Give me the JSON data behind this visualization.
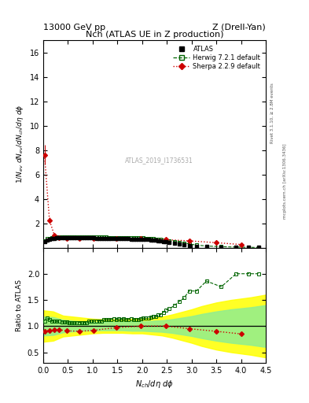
{
  "title_top": "13000 GeV pp",
  "title_top_right": "Z (Drell-Yan)",
  "plot_title": "Nch (ATLAS UE in Z production)",
  "xlabel": "$N_{ch}/d\\eta\\ d\\phi$",
  "ylabel_main": "$1/N_{ev}\\ dN_{ev}/dN_{ch}/d\\eta\\ d\\phi$",
  "ylabel_ratio": "Ratio to ATLAS",
  "watermark": "ATLAS_2019_I1736531",
  "xlim": [
    0,
    4.5
  ],
  "ylim_main": [
    0,
    17
  ],
  "ylim_ratio": [
    0.3,
    2.5
  ],
  "yticks_main": [
    2,
    4,
    6,
    8,
    10,
    12,
    14,
    16
  ],
  "yticks_ratio": [
    0.5,
    1.0,
    1.5,
    2.0
  ],
  "atlas_x": [
    0.025,
    0.075,
    0.125,
    0.175,
    0.225,
    0.275,
    0.325,
    0.375,
    0.425,
    0.475,
    0.525,
    0.575,
    0.625,
    0.675,
    0.725,
    0.775,
    0.825,
    0.875,
    0.925,
    0.975,
    1.025,
    1.075,
    1.125,
    1.175,
    1.225,
    1.275,
    1.325,
    1.375,
    1.425,
    1.475,
    1.525,
    1.575,
    1.625,
    1.675,
    1.725,
    1.775,
    1.825,
    1.875,
    1.925,
    1.975,
    2.025,
    2.075,
    2.125,
    2.175,
    2.225,
    2.275,
    2.325,
    2.375,
    2.425,
    2.475,
    2.55,
    2.65,
    2.75,
    2.85,
    2.95,
    3.1,
    3.3,
    3.6,
    3.9,
    4.15,
    4.35
  ],
  "atlas_y": [
    0.5,
    0.62,
    0.68,
    0.73,
    0.76,
    0.78,
    0.79,
    0.8,
    0.8,
    0.8,
    0.8,
    0.8,
    0.8,
    0.8,
    0.79,
    0.79,
    0.79,
    0.79,
    0.78,
    0.78,
    0.78,
    0.77,
    0.77,
    0.77,
    0.76,
    0.76,
    0.75,
    0.75,
    0.74,
    0.74,
    0.73,
    0.73,
    0.72,
    0.72,
    0.72,
    0.71,
    0.71,
    0.7,
    0.7,
    0.69,
    0.68,
    0.67,
    0.66,
    0.64,
    0.62,
    0.6,
    0.57,
    0.54,
    0.5,
    0.46,
    0.42,
    0.36,
    0.3,
    0.24,
    0.18,
    0.12,
    0.07,
    0.04,
    0.02,
    0.01,
    0.005
  ],
  "atlas_yerr": [
    0.02,
    0.02,
    0.02,
    0.02,
    0.01,
    0.01,
    0.01,
    0.01,
    0.01,
    0.01,
    0.01,
    0.01,
    0.01,
    0.01,
    0.01,
    0.01,
    0.01,
    0.01,
    0.01,
    0.01,
    0.01,
    0.01,
    0.01,
    0.01,
    0.01,
    0.01,
    0.01,
    0.01,
    0.01,
    0.01,
    0.01,
    0.01,
    0.01,
    0.01,
    0.01,
    0.01,
    0.01,
    0.01,
    0.01,
    0.01,
    0.01,
    0.01,
    0.01,
    0.01,
    0.01,
    0.01,
    0.01,
    0.01,
    0.01,
    0.01,
    0.01,
    0.01,
    0.01,
    0.01,
    0.01,
    0.01,
    0.005,
    0.003,
    0.002,
    0.001,
    0.001
  ],
  "herwig_x": [
    0.025,
    0.075,
    0.125,
    0.175,
    0.225,
    0.275,
    0.325,
    0.375,
    0.425,
    0.475,
    0.525,
    0.575,
    0.625,
    0.675,
    0.725,
    0.775,
    0.825,
    0.875,
    0.925,
    0.975,
    1.025,
    1.075,
    1.125,
    1.175,
    1.225,
    1.275,
    1.325,
    1.375,
    1.425,
    1.475,
    1.525,
    1.575,
    1.625,
    1.675,
    1.725,
    1.775,
    1.825,
    1.875,
    1.925,
    1.975,
    2.025,
    2.075,
    2.125,
    2.175,
    2.225,
    2.275,
    2.325,
    2.375,
    2.425,
    2.475,
    2.55,
    2.65,
    2.75,
    2.85,
    2.95,
    3.1,
    3.3,
    3.6,
    3.9,
    4.15,
    4.35
  ],
  "herwig_y": [
    0.55,
    0.72,
    0.76,
    0.8,
    0.83,
    0.85,
    0.86,
    0.86,
    0.86,
    0.86,
    0.85,
    0.85,
    0.85,
    0.85,
    0.85,
    0.85,
    0.85,
    0.85,
    0.85,
    0.85,
    0.85,
    0.85,
    0.85,
    0.85,
    0.85,
    0.85,
    0.84,
    0.84,
    0.84,
    0.83,
    0.83,
    0.82,
    0.82,
    0.81,
    0.81,
    0.81,
    0.8,
    0.8,
    0.79,
    0.79,
    0.78,
    0.77,
    0.76,
    0.75,
    0.73,
    0.71,
    0.69,
    0.66,
    0.63,
    0.6,
    0.56,
    0.5,
    0.44,
    0.37,
    0.3,
    0.2,
    0.13,
    0.07,
    0.04,
    0.02,
    0.01
  ],
  "sherpa_x": [
    0.025,
    0.125,
    0.225,
    0.325,
    0.475,
    0.725,
    1.025,
    1.475,
    1.975,
    2.475,
    2.95,
    3.5,
    4.0
  ],
  "sherpa_y": [
    7.6,
    2.25,
    1.0,
    0.78,
    0.72,
    0.72,
    0.72,
    0.72,
    0.72,
    0.65,
    0.55,
    0.4,
    0.25
  ],
  "sherpa_yerr": [
    0.8,
    0.25,
    0.05,
    0.03,
    0.02,
    0.02,
    0.02,
    0.02,
    0.02,
    0.02,
    0.02,
    0.02,
    0.02
  ],
  "herwig_ratio_y": [
    1.1,
    1.16,
    1.12,
    1.1,
    1.09,
    1.09,
    1.09,
    1.08,
    1.08,
    1.08,
    1.06,
    1.06,
    1.06,
    1.06,
    1.07,
    1.07,
    1.07,
    1.07,
    1.09,
    1.09,
    1.09,
    1.1,
    1.1,
    1.1,
    1.12,
    1.12,
    1.12,
    1.12,
    1.14,
    1.12,
    1.14,
    1.12,
    1.14,
    1.12,
    1.12,
    1.14,
    1.12,
    1.13,
    1.12,
    1.14,
    1.15,
    1.15,
    1.15,
    1.17,
    1.18,
    1.18,
    1.21,
    1.22,
    1.26,
    1.3,
    1.33,
    1.39,
    1.47,
    1.54,
    1.67,
    1.67,
    1.86,
    1.75,
    2.0,
    2.0,
    2.0
  ],
  "sherpa_ratio_x": [
    0.025,
    0.125,
    0.225,
    0.325,
    0.475,
    0.725,
    1.025,
    1.475,
    1.975,
    2.475,
    2.95,
    3.5,
    4.0
  ],
  "sherpa_ratio_y": [
    0.9,
    0.92,
    0.93,
    0.93,
    0.91,
    0.9,
    0.92,
    0.97,
    1.0,
    1.0,
    0.95,
    0.9,
    0.85
  ],
  "band_yellow_x": [
    0.0,
    0.2,
    0.4,
    0.6,
    0.8,
    1.0,
    1.2,
    1.4,
    1.6,
    1.8,
    2.0,
    2.2,
    2.4,
    2.6,
    2.8,
    3.0,
    3.2,
    3.5,
    3.8,
    4.2,
    4.5
  ],
  "band_yellow_up": [
    1.3,
    1.28,
    1.2,
    1.18,
    1.16,
    1.14,
    1.13,
    1.13,
    1.13,
    1.14,
    1.14,
    1.16,
    1.18,
    1.22,
    1.27,
    1.32,
    1.38,
    1.45,
    1.5,
    1.55,
    1.6
  ],
  "band_yellow_dn": [
    0.7,
    0.72,
    0.8,
    0.82,
    0.84,
    0.86,
    0.87,
    0.87,
    0.87,
    0.86,
    0.86,
    0.84,
    0.82,
    0.78,
    0.73,
    0.68,
    0.62,
    0.55,
    0.5,
    0.45,
    0.4
  ],
  "band_green_x": [
    0.0,
    0.2,
    0.4,
    0.6,
    0.8,
    1.0,
    1.2,
    1.4,
    1.6,
    1.8,
    2.0,
    2.2,
    2.4,
    2.6,
    2.8,
    3.0,
    3.2,
    3.5,
    3.8,
    4.2,
    4.5
  ],
  "band_green_up": [
    1.18,
    1.17,
    1.12,
    1.1,
    1.09,
    1.08,
    1.08,
    1.08,
    1.08,
    1.09,
    1.09,
    1.1,
    1.11,
    1.13,
    1.16,
    1.19,
    1.23,
    1.28,
    1.32,
    1.36,
    1.4
  ],
  "band_green_dn": [
    0.82,
    0.83,
    0.88,
    0.9,
    0.91,
    0.92,
    0.92,
    0.92,
    0.92,
    0.91,
    0.91,
    0.9,
    0.89,
    0.87,
    0.84,
    0.81,
    0.77,
    0.72,
    0.68,
    0.64,
    0.6
  ],
  "atlas_color": "#000000",
  "herwig_color": "#006400",
  "sherpa_color": "#cc0000",
  "band_yellow": "#ffff00",
  "band_green": "#90ee90"
}
